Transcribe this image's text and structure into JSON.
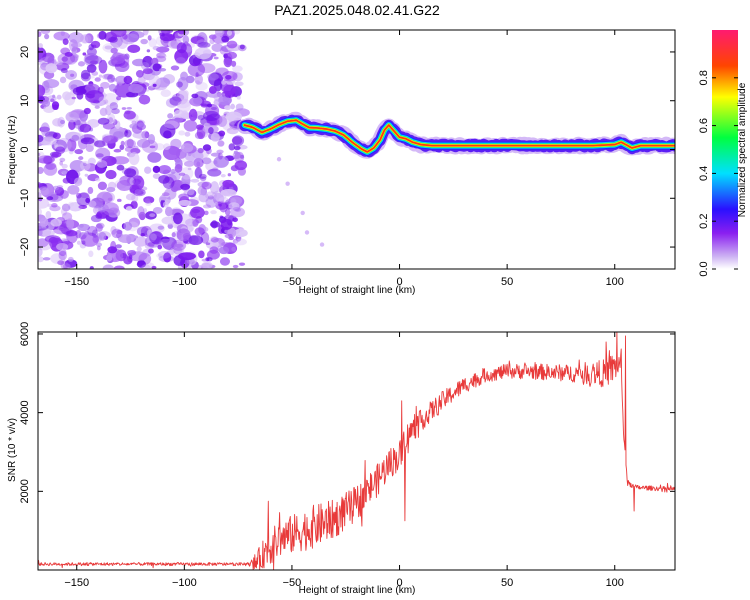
{
  "title": "PAZ1.2025.048.02.41.G22",
  "chart_data": [
    {
      "type": "heatmap",
      "xlabel": "Height of straight line (km)",
      "ylabel": "Frequency (Hz)",
      "xlim": [
        -168,
        128
      ],
      "ylim": [
        -24.5,
        24.5
      ],
      "xticks": [
        -150,
        -100,
        -50,
        0,
        50,
        100
      ],
      "yticks": [
        -20,
        -10,
        0,
        10,
        20
      ],
      "noise_region_x": [
        -168,
        -73
      ],
      "ridge": {
        "x": [
          -72,
          -68,
          -64,
          -60,
          -56,
          -52,
          -48,
          -45,
          -42,
          -38,
          -34,
          -30,
          -26,
          -22,
          -18,
          -15,
          -12,
          -9,
          -7,
          -5,
          -3,
          0,
          3,
          6,
          10,
          15,
          20,
          30,
          40,
          60,
          80,
          90,
          100,
          103,
          106,
          108,
          112,
          120,
          128
        ],
        "y": [
          5,
          4.5,
          3.5,
          4.2,
          5.1,
          5.8,
          6.0,
          5.2,
          4.5,
          4.4,
          4.2,
          3.8,
          3.0,
          1.5,
          0.2,
          -0.5,
          0.3,
          2.0,
          4.0,
          5.0,
          4.0,
          2.5,
          2.2,
          1.5,
          1.0,
          0.8,
          0.8,
          0.8,
          0.8,
          0.8,
          0.8,
          0.8,
          1.0,
          1.5,
          0.8,
          0.3,
          0.8,
          0.8,
          0.8
        ]
      },
      "colorbar": {
        "label": "Normalized spectral amplitude",
        "ticks": [
          "0.0",
          "0.2",
          "0.4",
          "0.6",
          "0.8"
        ],
        "tick_values": [
          0,
          0.2,
          0.4,
          0.6,
          0.8
        ],
        "range": [
          0,
          1
        ]
      }
    },
    {
      "type": "line",
      "xlabel": "Height of straight line (km)",
      "ylabel": "SNR (10 * v/v)",
      "xlim": [
        -168,
        128
      ],
      "ylim": [
        0,
        6050
      ],
      "xticks": [
        -150,
        -100,
        -50,
        0,
        50,
        100
      ],
      "yticks": [
        2000,
        4000,
        6000
      ],
      "color": "#e83a3a",
      "trend": {
        "x": [
          -168,
          -100,
          -70,
          -66,
          -62,
          -55,
          -45,
          -30,
          -20,
          -10,
          -5,
          0,
          2,
          5,
          10,
          20,
          30,
          40,
          50,
          60,
          80,
          95,
          100,
          103,
          104,
          106,
          110,
          128
        ],
        "y": [
          150,
          150,
          150,
          200,
          500,
          800,
          1000,
          1300,
          1700,
          2300,
          2700,
          2900,
          3300,
          3500,
          3800,
          4300,
          4700,
          4950,
          5050,
          5050,
          5000,
          5000,
          5150,
          5300,
          3500,
          2200,
          2100,
          2050
        ]
      },
      "noise_amplitude": {
        "x": [
          -168,
          -70,
          -66,
          -60,
          -40,
          -20,
          0,
          10,
          40,
          80,
          100,
          104,
          108,
          128
        ],
        "y": [
          40,
          40,
          300,
          450,
          550,
          450,
          380,
          280,
          180,
          220,
          400,
          120,
          60,
          60
        ]
      },
      "spikes": [
        {
          "x": 2.5,
          "y": 1250
        },
        {
          "x": 1,
          "y": 4300
        },
        {
          "x": 105,
          "y": 5950
        },
        {
          "x": 101,
          "y": 6050
        },
        {
          "x": 109,
          "y": 1500
        },
        {
          "x": -61,
          "y": 1750
        }
      ]
    }
  ]
}
